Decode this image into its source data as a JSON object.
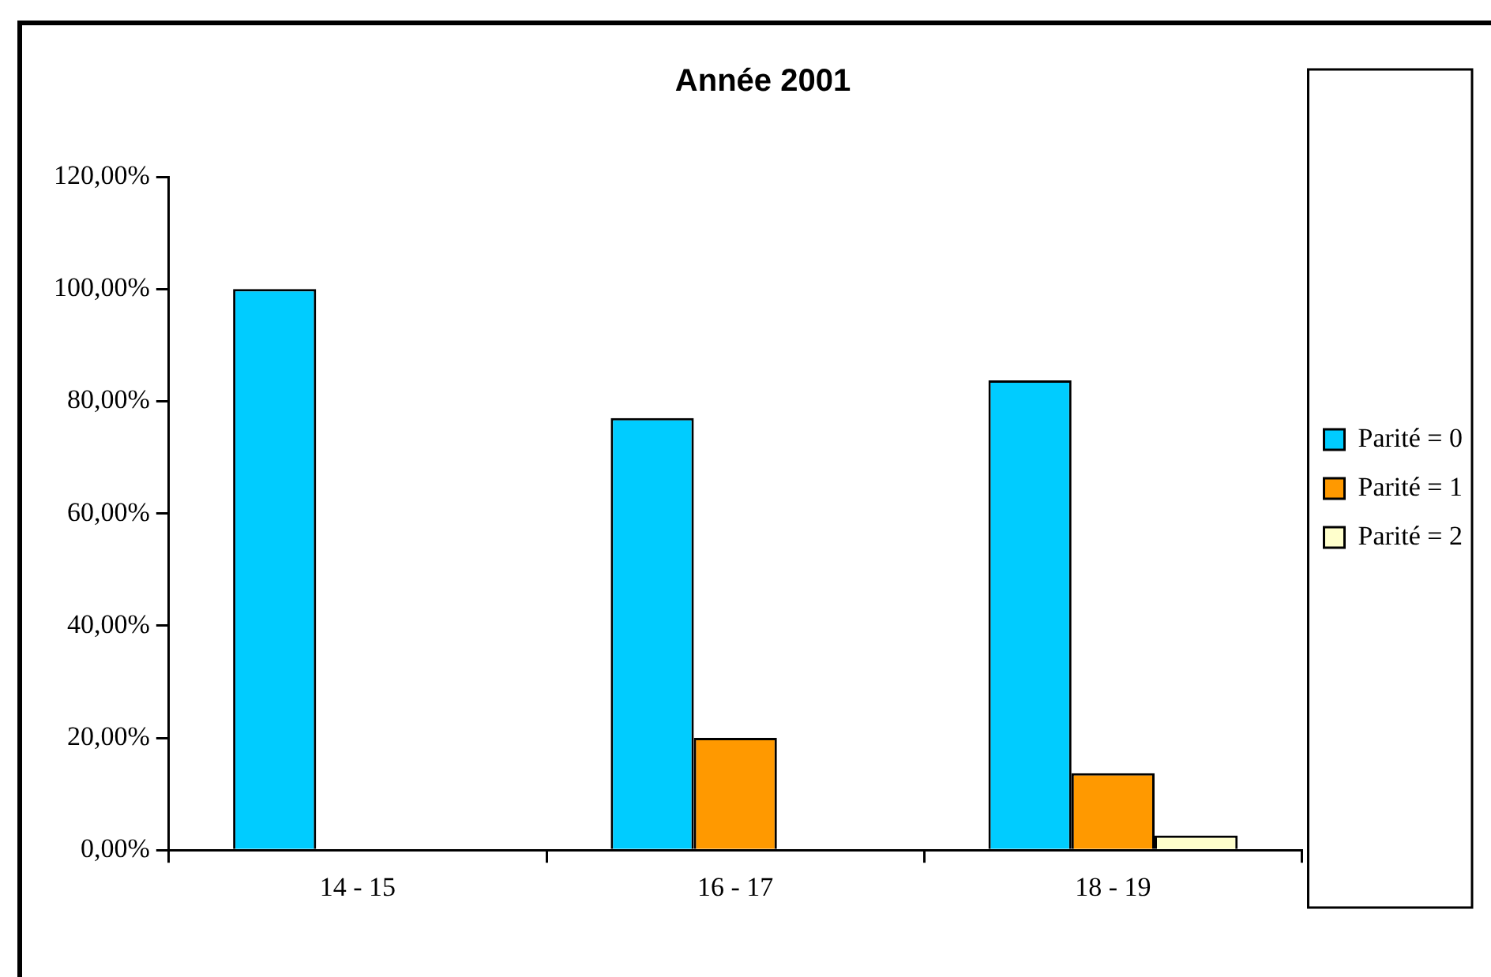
{
  "chart_data": {
    "type": "bar",
    "title": "Année 2001",
    "categories": [
      "14 - 15",
      "16 - 17",
      "18 - 19"
    ],
    "series": [
      {
        "name": "Parité = 0",
        "color": "#00ccff",
        "values": [
          100,
          77,
          83.7
        ]
      },
      {
        "name": "Parité = 1",
        "color": "#ff9900",
        "values": [
          0,
          20,
          13.7
        ]
      },
      {
        "name": "Parité = 2",
        "color": "#ffffcc",
        "values": [
          0,
          0,
          2.6
        ]
      }
    ],
    "ylim": [
      0,
      120
    ],
    "yticks": [
      {
        "value": 0,
        "label": "0,00%"
      },
      {
        "value": 20,
        "label": "20,00%"
      },
      {
        "value": 40,
        "label": "40,00%"
      },
      {
        "value": 60,
        "label": "60,00%"
      },
      {
        "value": 80,
        "label": "80,00%"
      },
      {
        "value": 100,
        "label": "100,00%"
      },
      {
        "value": 120,
        "label": "120,00%"
      }
    ],
    "grid": false,
    "legend": "right"
  }
}
